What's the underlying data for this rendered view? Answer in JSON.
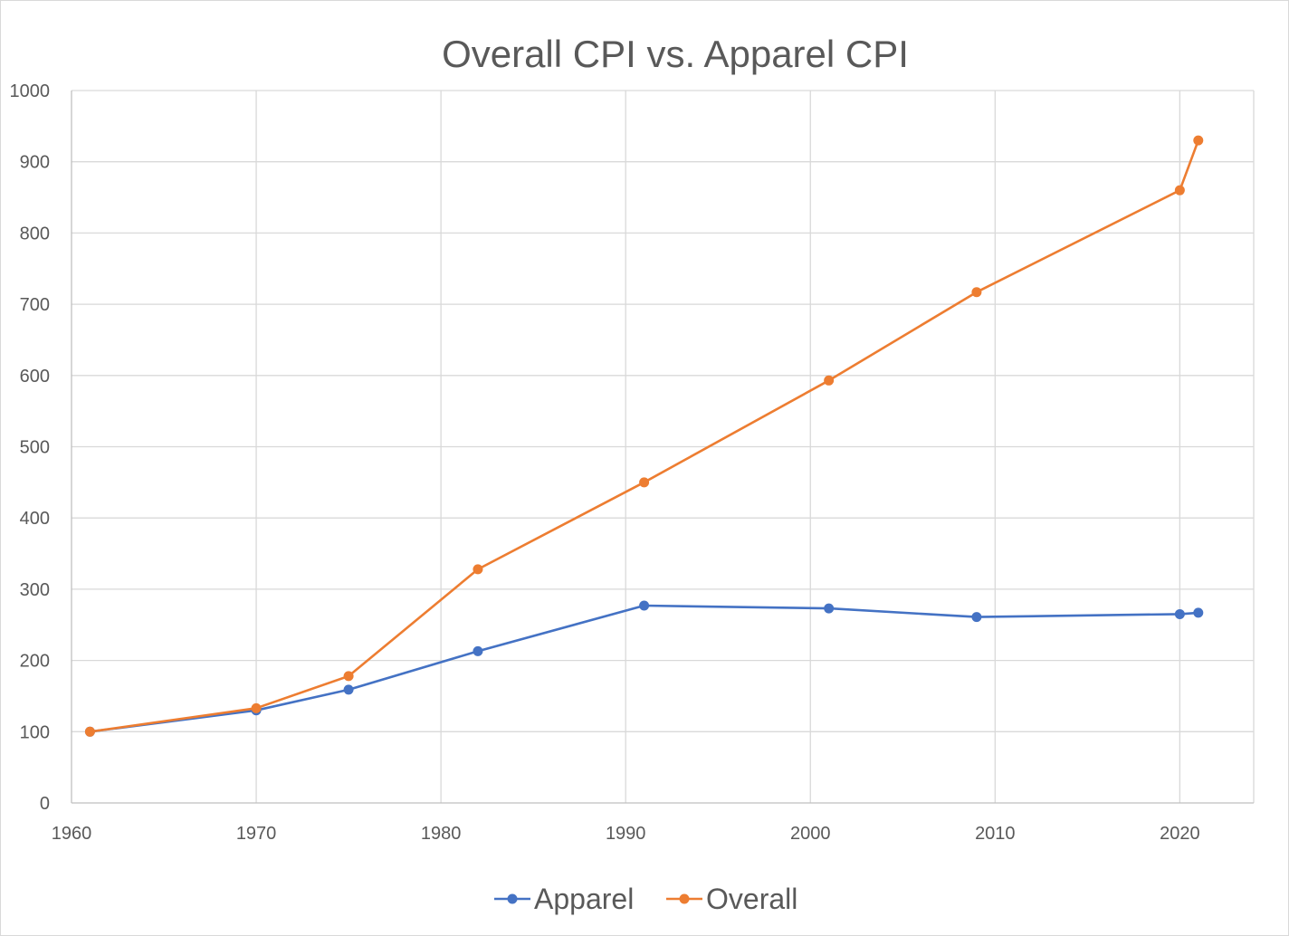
{
  "chart_data": {
    "type": "line",
    "title": "Overall CPI vs. Apparel CPI",
    "xlabel": "",
    "ylabel": "",
    "xlim": [
      1960,
      2024
    ],
    "ylim": [
      0,
      1000
    ],
    "x_ticks": [
      1960,
      1970,
      1980,
      1990,
      2000,
      2010,
      2020
    ],
    "y_ticks": [
      0,
      100,
      200,
      300,
      400,
      500,
      600,
      700,
      800,
      900,
      1000
    ],
    "grid": true,
    "legend_position": "bottom",
    "series": [
      {
        "name": "Apparel",
        "color": "#4472c4",
        "x": [
          1961,
          1970,
          1975,
          1982,
          1991,
          2001,
          2009,
          2020,
          2021
        ],
        "values": [
          100,
          130,
          159,
          213,
          277,
          273,
          261,
          265,
          267
        ]
      },
      {
        "name": "Overall",
        "color": "#ed7d31",
        "x": [
          1961,
          1970,
          1975,
          1982,
          1991,
          2001,
          2009,
          2020,
          2021
        ],
        "values": [
          100,
          133,
          178,
          328,
          450,
          593,
          717,
          860,
          930
        ]
      }
    ]
  }
}
